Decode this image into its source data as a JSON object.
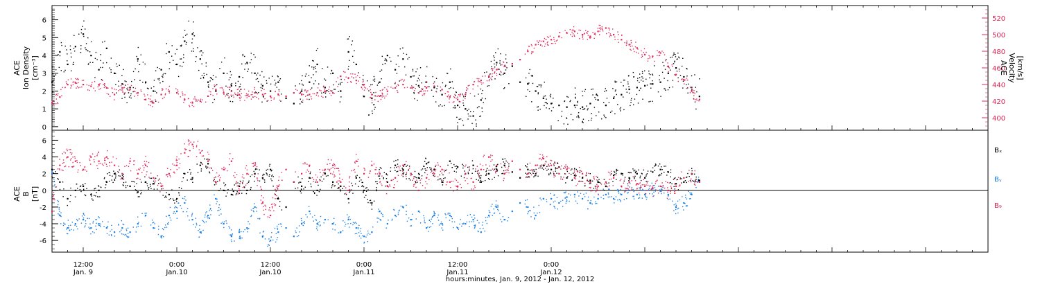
{
  "chart_data": [
    {
      "type": "scatter",
      "panel": "ion-density-velocity",
      "ylabel_left": [
        "ACE",
        "Ion Density",
        "[cm⁻³]"
      ],
      "ylabel_right": [
        "ACE",
        "Velocity",
        "[km/s]"
      ],
      "ylim_left": [
        -0.2,
        6.8
      ],
      "ylim_right": [
        385,
        535
      ],
      "yticks_left": [
        "0",
        "1",
        "2",
        "3",
        "4",
        "5",
        "6"
      ],
      "yticks_right": [
        "400",
        "420",
        "440",
        "460",
        "480",
        "500",
        "520"
      ],
      "series": [
        {
          "axis": "left",
          "color": "#000000",
          "x": [
            0,
            1,
            2,
            3,
            4,
            5,
            6,
            7,
            8,
            9,
            10,
            11,
            12,
            13,
            14,
            15,
            16,
            17,
            18,
            19,
            20,
            21,
            22,
            23,
            24,
            25,
            26,
            27,
            28,
            29,
            30,
            31,
            32,
            33,
            34,
            35,
            36,
            37,
            38,
            39,
            40,
            41,
            42,
            43,
            44,
            45,
            46,
            47,
            48,
            49,
            50,
            51,
            52,
            53,
            54,
            55,
            56,
            57,
            58,
            59,
            60,
            61,
            62,
            63,
            64,
            65,
            66,
            67,
            68,
            69,
            70,
            71,
            72,
            73,
            74,
            75,
            76,
            77,
            78,
            79,
            80,
            81,
            82,
            83
          ],
          "y": [
            2.5,
            4.2,
            3.5,
            4.5,
            5.2,
            4.0,
            3.2,
            4.4,
            3.0,
            2.4,
            2.2,
            3.8,
            2.5,
            2.0,
            3.2,
            4.2,
            3.5,
            4.8,
            5.2,
            3.8,
            2.5,
            2.0,
            3.0,
            2.3,
            2.8,
            3.6,
            3.0,
            2.3,
            2.0,
            2.5,
            1.6,
            1.3,
            2.0,
            2.5,
            3.5,
            2.2,
            3.0,
            2.0,
            4.2,
            3.5,
            1.7,
            1.6,
            2.5,
            4.0,
            3.2,
            3.8,
            2.8,
            2.3,
            2.5,
            2.2,
            1.8,
            2.5,
            1.2,
            1.0,
            0.6,
            1.5,
            2.8,
            3.6,
            3.0,
            3.4,
            2.5,
            2.4,
            2.0,
            1.6,
            1.3,
            1.2,
            1.1,
            1.2,
            1.1,
            1.3,
            1.5,
            1.2,
            1.6,
            1.8,
            2.1,
            2.2,
            2.3,
            2.4,
            2.5,
            3.0,
            3.3,
            2.8,
            2.2,
            1.7
          ]
        },
        {
          "axis": "right",
          "color": "#dd2a5a",
          "x": [
            0,
            1,
            2,
            3,
            4,
            5,
            6,
            7,
            8,
            9,
            10,
            11,
            12,
            13,
            14,
            15,
            16,
            17,
            18,
            19,
            20,
            21,
            22,
            23,
            24,
            25,
            26,
            27,
            28,
            29,
            30,
            31,
            32,
            33,
            34,
            35,
            36,
            37,
            38,
            39,
            40,
            41,
            42,
            43,
            44,
            45,
            46,
            47,
            48,
            49,
            50,
            51,
            52,
            53,
            54,
            55,
            56,
            57,
            58,
            59,
            60,
            61,
            62,
            63,
            64,
            65,
            66,
            67,
            68,
            69,
            70,
            71,
            72,
            73,
            74,
            75,
            76,
            77,
            78,
            79,
            80,
            81,
            82,
            83
          ],
          "y": [
            418,
            425,
            440,
            442,
            440,
            438,
            440,
            436,
            428,
            436,
            434,
            430,
            422,
            418,
            428,
            432,
            430,
            422,
            418,
            420,
            426,
            434,
            430,
            432,
            428,
            427,
            430,
            428,
            426,
            428,
            426,
            430,
            428,
            428,
            430,
            432,
            430,
            450,
            448,
            445,
            440,
            428,
            426,
            432,
            436,
            440,
            436,
            430,
            436,
            438,
            434,
            425,
            422,
            428,
            440,
            445,
            450,
            458,
            462,
            465,
            470,
            480,
            488,
            492,
            494,
            498,
            502,
            504,
            500,
            498,
            504,
            508,
            500,
            494,
            488,
            484,
            476,
            474,
            478,
            462,
            452,
            446,
            432,
            422
          ]
        }
      ]
    },
    {
      "type": "scatter",
      "panel": "magnetic-field",
      "ylabel_left": [
        "ACE",
        "B",
        "[nT]"
      ],
      "ylim": [
        -7.4,
        7.2
      ],
      "yticks": [
        "-6",
        "-4",
        "-2",
        "0",
        "2",
        "4",
        "6"
      ],
      "zero_line": true,
      "legend": [
        "Bₓ",
        "Bᵧ",
        "B₉"
      ],
      "series": [
        {
          "name": "Bx",
          "color": "#000000",
          "x": [
            0,
            1,
            2,
            3,
            4,
            5,
            6,
            7,
            8,
            9,
            10,
            11,
            12,
            13,
            14,
            15,
            16,
            17,
            18,
            19,
            20,
            21,
            22,
            23,
            24,
            25,
            26,
            27,
            28,
            29,
            30,
            31,
            32,
            33,
            34,
            35,
            36,
            37,
            38,
            39,
            40,
            41,
            42,
            43,
            44,
            45,
            46,
            47,
            48,
            49,
            50,
            51,
            52,
            53,
            54,
            55,
            56,
            57,
            58,
            59,
            60,
            61,
            62,
            63,
            64,
            65,
            66,
            67,
            68,
            69,
            70,
            71,
            72,
            73,
            74,
            75,
            76,
            77,
            78,
            79,
            80,
            81,
            82,
            83
          ],
          "y": [
            2.5,
            1.0,
            -1.0,
            0.0,
            0.5,
            -0.5,
            0.0,
            1.0,
            2.0,
            1.5,
            0.5,
            -0.2,
            1.0,
            0.8,
            0.5,
            -0.5,
            -1.0,
            2.0,
            1.5,
            3.0,
            3.2,
            1.0,
            0.0,
            -0.5,
            0.5,
            0.0,
            2.0,
            1.5,
            2.5,
            -1.0,
            -2.0,
            1.0,
            0.5,
            1.5,
            0.0,
            2.0,
            1.0,
            0.5,
            -1.0,
            1.5,
            0.0,
            -1.5,
            2.0,
            1.0,
            3.0,
            2.5,
            2.0,
            1.5,
            3.2,
            2.5,
            1.0,
            3.5,
            2.8,
            2.0,
            3.0,
            1.0,
            2.0,
            2.5,
            3.0,
            2.2,
            1.5,
            2.5,
            2.0,
            3.0,
            2.5,
            2.8,
            1.5,
            1.8,
            1.5,
            1.2,
            1.0,
            0.5,
            1.8,
            2.0,
            1.5,
            2.0,
            1.5,
            2.2,
            2.5,
            2.2,
            0.8,
            1.0,
            2.0,
            1.2
          ]
        },
        {
          "name": "By",
          "color": "#1a7fe0",
          "x": [
            0,
            1,
            2,
            3,
            4,
            5,
            6,
            7,
            8,
            9,
            10,
            11,
            12,
            13,
            14,
            15,
            16,
            17,
            18,
            19,
            20,
            21,
            22,
            23,
            24,
            25,
            26,
            27,
            28,
            29,
            30,
            31,
            32,
            33,
            34,
            35,
            36,
            37,
            38,
            39,
            40,
            41,
            42,
            43,
            44,
            45,
            46,
            47,
            48,
            49,
            50,
            51,
            52,
            53,
            54,
            55,
            56,
            57,
            58,
            59,
            60,
            61,
            62,
            63,
            64,
            65,
            66,
            67,
            68,
            69,
            70,
            71,
            72,
            73,
            74,
            75,
            76,
            77,
            78,
            79,
            80,
            81,
            82,
            83
          ],
          "y": [
            2.0,
            -3.0,
            -4.5,
            -4.0,
            -3.5,
            -4.5,
            -4.0,
            -4.5,
            -5.0,
            -4.5,
            -5.0,
            -4.0,
            -3.0,
            -4.5,
            -5.5,
            -3.0,
            -2.5,
            -1.5,
            -3.5,
            -5.0,
            -3.0,
            -1.0,
            -4.0,
            -5.5,
            -5.0,
            -4.5,
            -2.0,
            -5.5,
            -6.0,
            -5.0,
            -4.5,
            -5.5,
            -4.0,
            -2.5,
            -4.0,
            -3.5,
            -4.0,
            -5.0,
            -3.5,
            -4.5,
            -5.5,
            -5.0,
            -2.5,
            -4.0,
            -3.0,
            -2.0,
            -3.5,
            -2.5,
            -4.5,
            -3.0,
            -4.0,
            -3.0,
            -4.5,
            -4.0,
            -3.5,
            -5.0,
            -3.0,
            -2.0,
            -3.5,
            -2.5,
            -1.5,
            -2.0,
            -3.0,
            -1.0,
            -1.0,
            -1.5,
            -0.8,
            -0.5,
            -1.0,
            -1.5,
            -1.0,
            -0.5,
            -1.0,
            -0.5,
            0.0,
            -0.5,
            -0.5,
            0.2,
            0.0,
            -0.5,
            -2.0,
            -1.5,
            -0.5,
            1.0
          ]
        },
        {
          "name": "Bz",
          "color": "#dd2a5a",
          "x": [
            0,
            1,
            2,
            3,
            4,
            5,
            6,
            7,
            8,
            9,
            10,
            11,
            12,
            13,
            14,
            15,
            16,
            17,
            18,
            19,
            20,
            21,
            22,
            23,
            24,
            25,
            26,
            27,
            28,
            29,
            30,
            31,
            32,
            33,
            34,
            35,
            36,
            37,
            38,
            39,
            40,
            41,
            42,
            43,
            44,
            45,
            46,
            47,
            48,
            49,
            50,
            51,
            52,
            53,
            54,
            55,
            56,
            57,
            58,
            59,
            60,
            61,
            62,
            63,
            64,
            65,
            66,
            67,
            68,
            69,
            70,
            71,
            72,
            73,
            74,
            75,
            76,
            77,
            78,
            79,
            80,
            81,
            82,
            83
          ],
          "y": [
            -2.5,
            3.0,
            4.0,
            3.5,
            2.5,
            4.0,
            3.5,
            4.0,
            3.0,
            2.0,
            3.5,
            2.0,
            3.0,
            1.5,
            0.5,
            2.0,
            3.0,
            4.5,
            5.5,
            4.5,
            3.5,
            1.0,
            2.5,
            3.5,
            0.0,
            2.0,
            3.0,
            -1.5,
            -3.0,
            0.5,
            2.5,
            1.0,
            2.0,
            3.0,
            1.0,
            2.5,
            3.0,
            1.0,
            0.0,
            3.5,
            2.0,
            3.0,
            2.0,
            0.5,
            1.5,
            3.0,
            2.0,
            0.0,
            1.5,
            2.0,
            2.5,
            1.0,
            0.5,
            2.0,
            1.0,
            2.5,
            4.0,
            3.0,
            2.0,
            3.5,
            2.5,
            2.0,
            3.0,
            3.8,
            3.0,
            2.0,
            2.5,
            1.5,
            2.0,
            1.0,
            0.5,
            1.0,
            1.5,
            0.5,
            1.0,
            0.8,
            0.5,
            0.3,
            0.5,
            0.0,
            0.5,
            1.5,
            2.0,
            1.0
          ]
        }
      ]
    },
    {
      "type": "time-axis",
      "xlim": [
        0,
        120
      ],
      "xtick_positions": [
        4,
        16,
        28,
        40,
        52,
        64,
        76,
        88,
        100,
        112
      ],
      "xticks": [
        {
          "x": 4,
          "time": "12:00",
          "date": "Jan. 9"
        },
        {
          "x": 16,
          "time": "0:00",
          "date": "Jan.10"
        },
        {
          "x": 28,
          "time": "12:00",
          "date": "Jan.10"
        },
        {
          "x": 40,
          "time": "0:00",
          "date": "Jan.11"
        },
        {
          "x": 52,
          "time": "12:00",
          "date": "Jan.11"
        },
        {
          "x": 64,
          "time": "0:00",
          "date": "Jan.12"
        }
      ],
      "xlabel": "hours:minutes, Jan. 9, 2012 - Jan. 12, 2012"
    }
  ]
}
